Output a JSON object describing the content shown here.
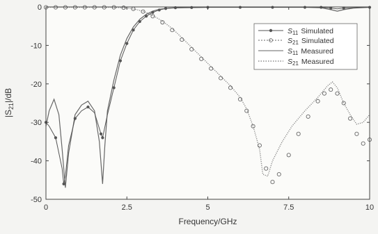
{
  "chart_data": {
    "type": "line",
    "xlabel": "Frequency/GHz",
    "ylabel_base": "|S",
    "ylabel_sub": "21",
    "ylabel_tail": "|/dB",
    "xlim": [
      0,
      10
    ],
    "ylim": [
      -50,
      0
    ],
    "xticks": [
      0,
      2.5,
      5,
      7.5,
      10
    ],
    "xtick_labels": [
      "0",
      "2.5",
      "5",
      "7.5",
      "10"
    ],
    "yticks": [
      0,
      -10,
      -20,
      -30,
      -40,
      -50
    ],
    "ytick_labels": [
      "0",
      "-10",
      "-20",
      "-30",
      "-40",
      "-50"
    ],
    "grid": false,
    "legend_position": "top-right",
    "legend": [
      {
        "base": "S",
        "sub": "11",
        "text": "Simulated",
        "style": "line-dot"
      },
      {
        "base": "S",
        "sub": "21",
        "text": "Simulated",
        "style": "dotted-circle"
      },
      {
        "base": "S",
        "sub": "11",
        "text": "Measured",
        "style": "solid"
      },
      {
        "base": "S",
        "sub": "21",
        "text": "Measured",
        "style": "dotted"
      }
    ],
    "series": [
      {
        "key": "s11_sim",
        "color": "#555555",
        "x": [
          0,
          0.1,
          0.3,
          0.5,
          0.55,
          0.6,
          0.7,
          0.9,
          1.1,
          1.3,
          1.5,
          1.7,
          1.75,
          1.8,
          1.9,
          2.1,
          2.3,
          2.5,
          2.7,
          2.9,
          3.1,
          3.3,
          3.5,
          3.7,
          4.0,
          4.5,
          5.0,
          6.0,
          7.0,
          8.0,
          8.5,
          8.8,
          9.0,
          9.2,
          9.5,
          10.0
        ],
        "y": [
          -30,
          -31,
          -34,
          -42,
          -46,
          -44,
          -36,
          -29,
          -27,
          -26,
          -27.5,
          -33,
          -34,
          -32,
          -28,
          -21,
          -14,
          -9.5,
          -6,
          -3.8,
          -2.4,
          -1.4,
          -0.8,
          -0.4,
          -0.2,
          -0.15,
          -0.1,
          -0.1,
          -0.1,
          -0.1,
          -0.1,
          -0.3,
          -0.5,
          -0.3,
          -0.2,
          -0.1
        ],
        "markers": [
          0,
          2,
          4,
          7,
          9,
          11,
          12,
          15,
          16,
          17,
          18,
          19,
          20,
          21,
          22,
          23,
          24,
          25,
          26,
          27,
          28,
          29,
          30,
          31,
          33,
          35
        ]
      },
      {
        "key": "s21_sim",
        "color": "#666666",
        "x": [
          0,
          0.3,
          0.6,
          0.9,
          1.2,
          1.5,
          1.8,
          2.1,
          2.4,
          2.7,
          3.0,
          3.3,
          3.6,
          3.9,
          4.2,
          4.5,
          4.8,
          5.1,
          5.4,
          5.7,
          6.0,
          6.2,
          6.4,
          6.6,
          6.8,
          7.0,
          7.2,
          7.5,
          7.8,
          8.1,
          8.4,
          8.6,
          8.8,
          9.0,
          9.2,
          9.4,
          9.6,
          9.8,
          10.0
        ],
        "y": [
          -0.1,
          -0.1,
          -0.1,
          -0.1,
          -0.1,
          -0.1,
          -0.1,
          -0.1,
          -0.2,
          -0.5,
          -1.2,
          -2.4,
          -4.0,
          -6.0,
          -8.5,
          -11.0,
          -13.5,
          -16.0,
          -18.5,
          -21.0,
          -24.0,
          -27.0,
          -31.0,
          -36.0,
          -42.0,
          -45.5,
          -43.5,
          -38.5,
          -33.0,
          -28.5,
          -24.5,
          -22.5,
          -21.5,
          -22.5,
          -25.0,
          -29.0,
          -33.0,
          -35.5,
          -34.5
        ]
      },
      {
        "key": "s11_meas",
        "color": "#666666",
        "x": [
          0,
          0.1,
          0.25,
          0.4,
          0.5,
          0.6,
          0.7,
          0.9,
          1.1,
          1.3,
          1.5,
          1.65,
          1.75,
          1.82,
          1.9,
          2.1,
          2.3,
          2.5,
          2.7,
          2.9,
          3.1,
          3.3,
          3.5,
          3.8,
          4.2,
          5.0,
          6.0,
          7.0,
          8.0,
          8.5,
          8.8,
          9.0,
          9.2,
          9.5,
          10.0
        ],
        "y": [
          -31,
          -27,
          -24,
          -28,
          -37,
          -47,
          -38,
          -28,
          -25.5,
          -24.5,
          -27,
          -35,
          -46,
          -36,
          -27,
          -19,
          -12.5,
          -8.2,
          -5.2,
          -3.2,
          -1.9,
          -1.1,
          -0.6,
          -0.3,
          -0.2,
          -0.1,
          -0.1,
          -0.1,
          -0.1,
          -0.2,
          -0.7,
          -1.1,
          -0.7,
          -0.3,
          -0.1
        ]
      },
      {
        "key": "s21_meas",
        "color": "#888888",
        "x": [
          0,
          0.5,
          1.0,
          1.5,
          2.0,
          2.4,
          2.7,
          3.0,
          3.3,
          3.6,
          3.9,
          4.2,
          4.5,
          4.8,
          5.1,
          5.4,
          5.7,
          6.0,
          6.2,
          6.4,
          6.6,
          6.7,
          6.85,
          7.0,
          7.3,
          7.6,
          8.0,
          8.4,
          8.7,
          8.85,
          9.0,
          9.2,
          9.4,
          9.6,
          9.8,
          10.0
        ],
        "y": [
          -0.1,
          -0.1,
          -0.1,
          -0.1,
          -0.1,
          -0.2,
          -0.5,
          -1.1,
          -2.2,
          -3.7,
          -5.6,
          -8.0,
          -10.5,
          -13.0,
          -15.5,
          -18.0,
          -20.5,
          -23.5,
          -26.5,
          -31.0,
          -37.0,
          -43.5,
          -44.0,
          -40.0,
          -35.0,
          -31.0,
          -27.0,
          -23.5,
          -20.5,
          -19.5,
          -21.0,
          -25.0,
          -28.0,
          -30.5,
          -30.0,
          -28.0
        ]
      }
    ]
  }
}
